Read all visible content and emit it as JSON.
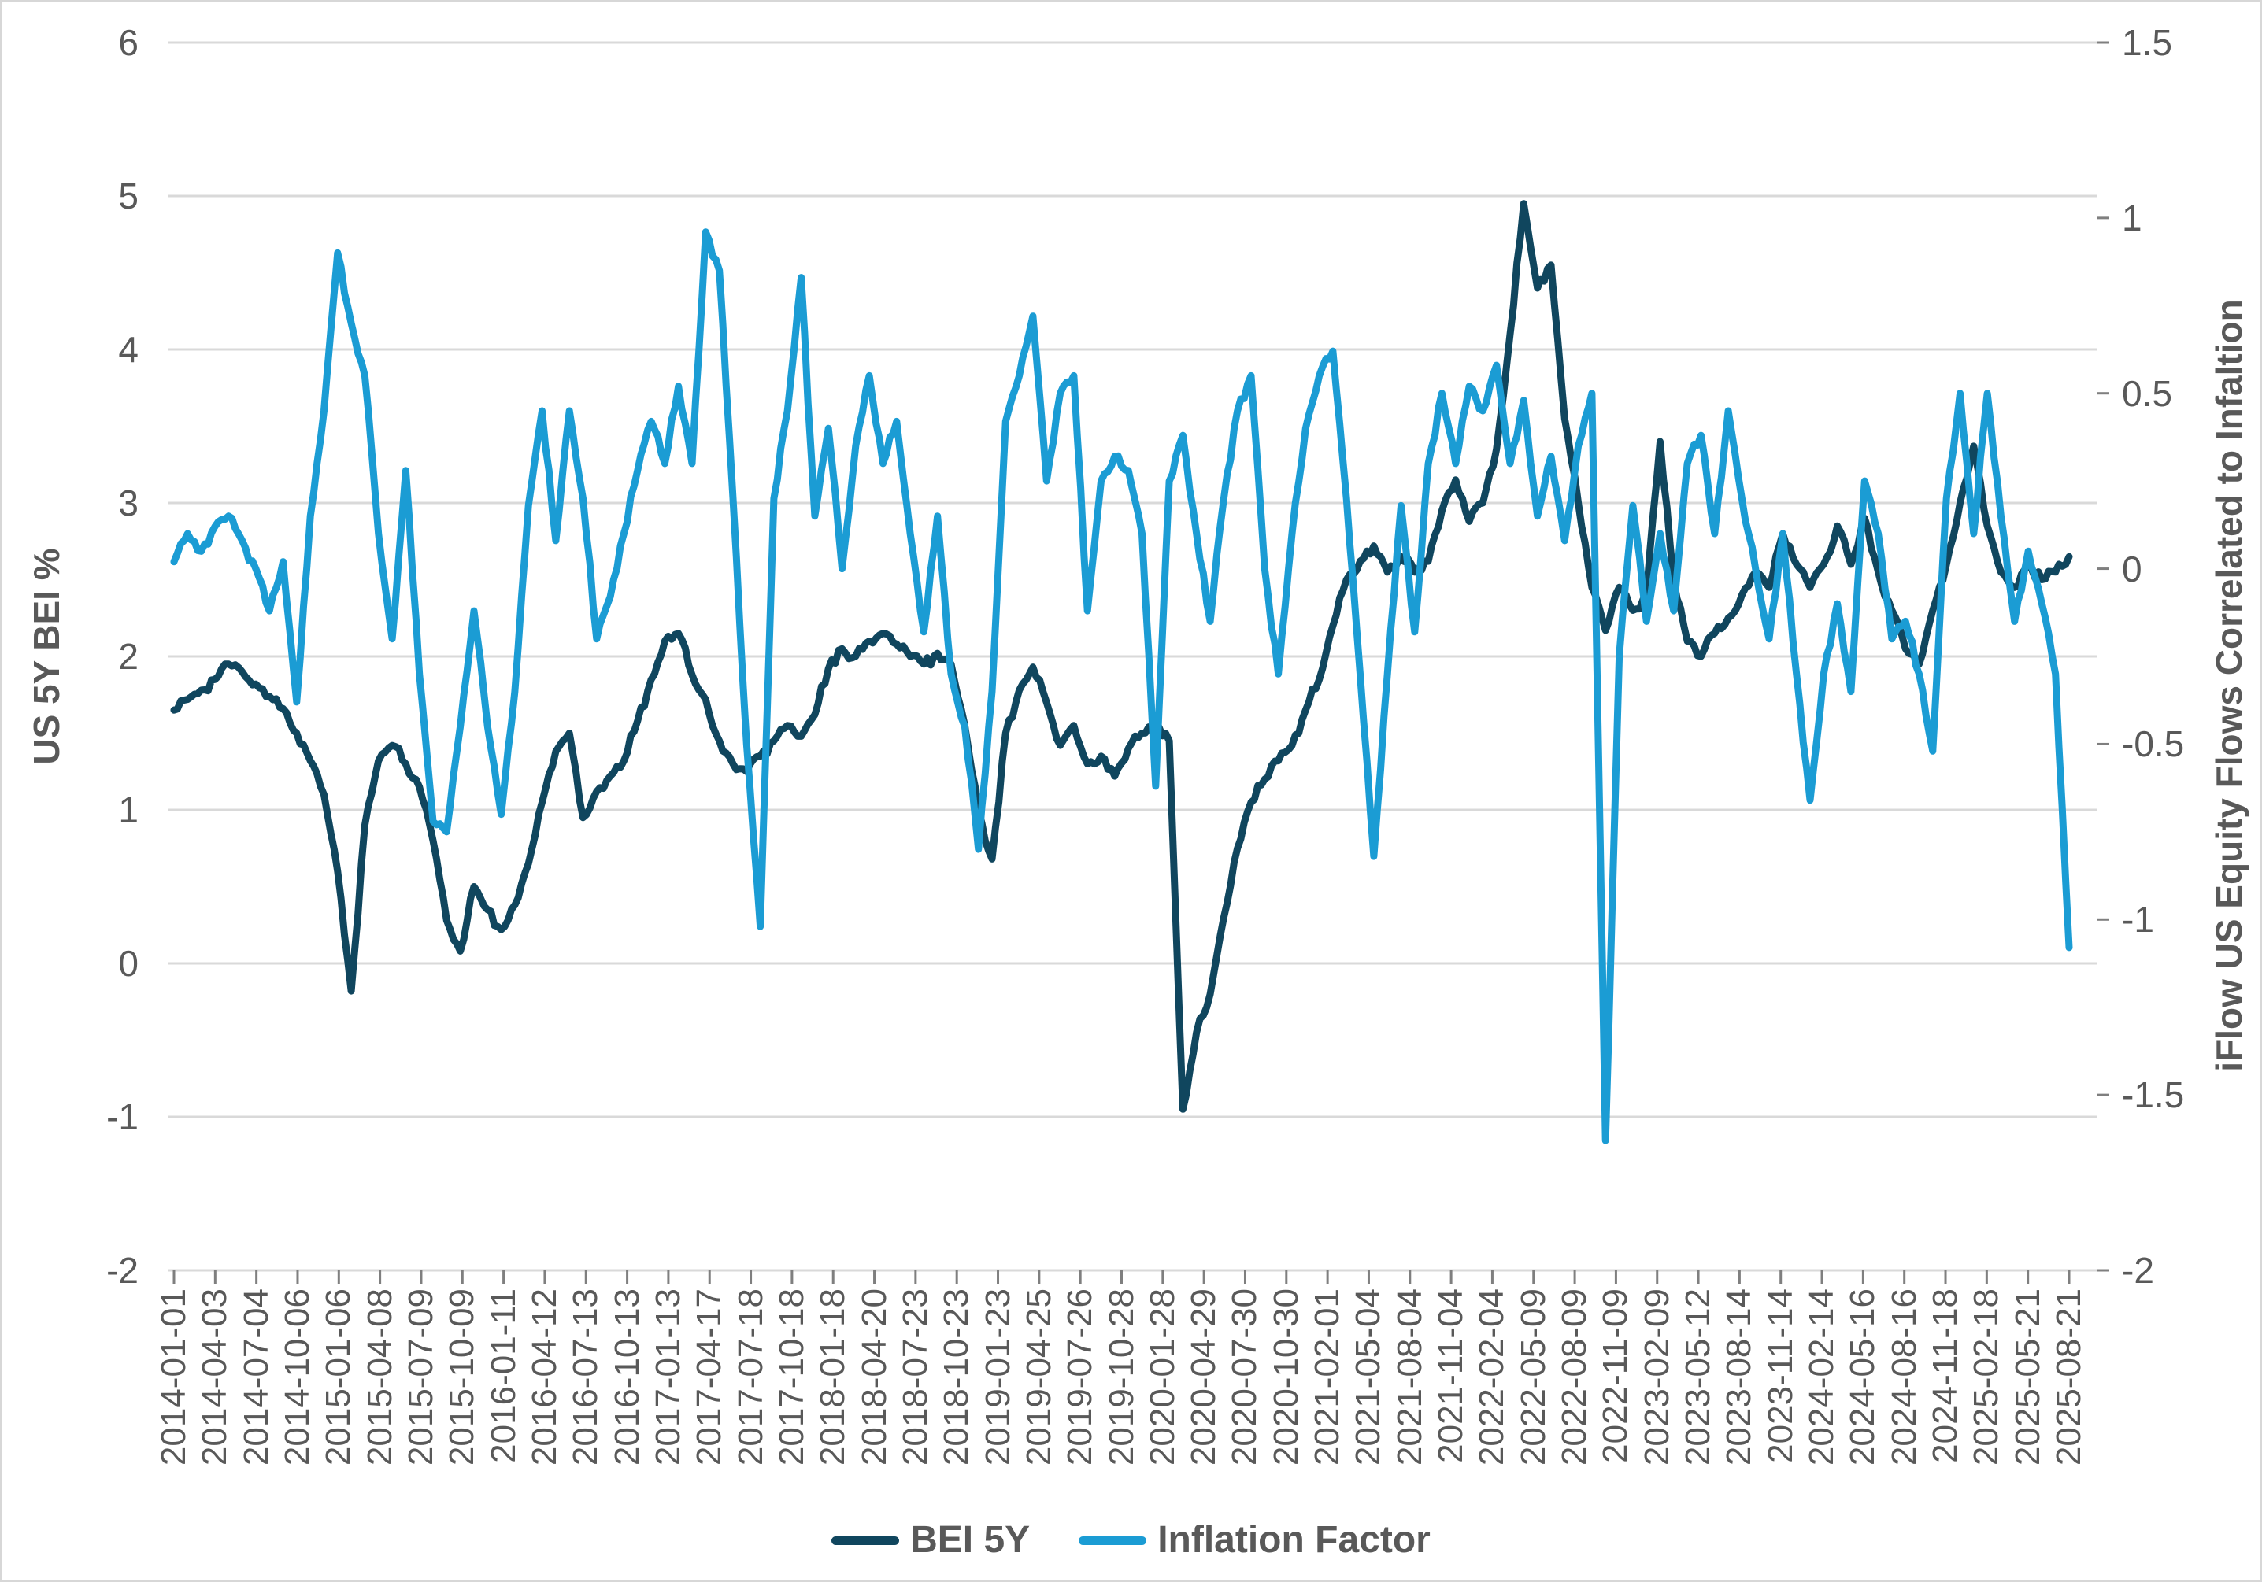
{
  "chart_data": {
    "type": "line",
    "title": "",
    "left_axis_title": "US 5Y BEI %",
    "right_axis_title": "iFlow US Equity Flows Correlated to Infaltion",
    "left_ticks": [
      "6",
      "5",
      "4",
      "3",
      "2",
      "1",
      "0",
      "-1",
      "-2"
    ],
    "right_ticks": [
      "1.5",
      "1",
      "0.5",
      "0",
      "-0.5",
      "-1",
      "-1.5",
      "-2"
    ],
    "left_ylim": [
      -2,
      6
    ],
    "right_ylim": [
      -2,
      1.5
    ],
    "grid": "horizontal",
    "legend_position": "bottom",
    "x_tick_labels": [
      "2014-01-01",
      "2014-04-03",
      "2014-07-04",
      "2014-10-06",
      "2015-01-06",
      "2015-04-08",
      "2015-07-09",
      "2015-10-09",
      "2016-01-11",
      "2016-04-12",
      "2016-07-13",
      "2016-10-13",
      "2017-01-13",
      "2017-04-17",
      "2017-07-18",
      "2017-10-18",
      "2018-01-18",
      "2018-04-20",
      "2018-07-23",
      "2018-10-23",
      "2019-01-23",
      "2019-04-25",
      "2019-07-26",
      "2019-10-28",
      "2020-01-28",
      "2020-04-29",
      "2020-07-30",
      "2020-10-30",
      "2021-02-01",
      "2021-05-04",
      "2021-08-04",
      "2021-11-04",
      "2022-02-04",
      "2022-05-09",
      "2022-08-09",
      "2022-11-09",
      "2023-02-09",
      "2023-05-12",
      "2023-08-14",
      "2023-11-14",
      "2024-02-14",
      "2024-05-16",
      "2024-08-16",
      "2024-11-18",
      "2025-02-18",
      "2025-05-21",
      "2025-08-21"
    ],
    "months": [
      "2014-01",
      "2014-02",
      "2014-03",
      "2014-04",
      "2014-05",
      "2014-06",
      "2014-07",
      "2014-08",
      "2014-09",
      "2014-10",
      "2014-11",
      "2014-12",
      "2015-01",
      "2015-02",
      "2015-03",
      "2015-04",
      "2015-05",
      "2015-06",
      "2015-07",
      "2015-08",
      "2015-09",
      "2015-10",
      "2015-11",
      "2015-12",
      "2016-01",
      "2016-02",
      "2016-03",
      "2016-04",
      "2016-05",
      "2016-06",
      "2016-07",
      "2016-08",
      "2016-09",
      "2016-10",
      "2016-11",
      "2016-12",
      "2017-01",
      "2017-02",
      "2017-03",
      "2017-04",
      "2017-05",
      "2017-06",
      "2017-07",
      "2017-08",
      "2017-09",
      "2017-10",
      "2017-11",
      "2017-12",
      "2018-01",
      "2018-02",
      "2018-03",
      "2018-04",
      "2018-05",
      "2018-06",
      "2018-07",
      "2018-08",
      "2018-09",
      "2018-10",
      "2018-11",
      "2018-12",
      "2019-01",
      "2019-02",
      "2019-03",
      "2019-04",
      "2019-05",
      "2019-06",
      "2019-07",
      "2019-08",
      "2019-09",
      "2019-10",
      "2019-11",
      "2019-12",
      "2020-01",
      "2020-02",
      "2020-03",
      "2020-04",
      "2020-05",
      "2020-06",
      "2020-07",
      "2020-08",
      "2020-09",
      "2020-10",
      "2020-11",
      "2020-12",
      "2021-01",
      "2021-02",
      "2021-03",
      "2021-04",
      "2021-05",
      "2021-06",
      "2021-07",
      "2021-08",
      "2021-09",
      "2021-10",
      "2021-11",
      "2021-12",
      "2022-01",
      "2022-02",
      "2022-03",
      "2022-04",
      "2022-05",
      "2022-06",
      "2022-07",
      "2022-08",
      "2022-09",
      "2022-10",
      "2022-11",
      "2022-12",
      "2023-01",
      "2023-02",
      "2023-03",
      "2023-04",
      "2023-05",
      "2023-06",
      "2023-07",
      "2023-08",
      "2023-09",
      "2023-10",
      "2023-11",
      "2023-12",
      "2024-01",
      "2024-02",
      "2024-03",
      "2024-04",
      "2024-05",
      "2024-06",
      "2024-07",
      "2024-08",
      "2024-09",
      "2024-10",
      "2024-11",
      "2024-12",
      "2025-01",
      "2025-02",
      "2025-03",
      "2025-04",
      "2025-05",
      "2025-06",
      "2025-07",
      "2025-08"
    ],
    "series": [
      {
        "name": "BEI 5Y",
        "axis": "left",
        "color": "#10465E",
        "values": [
          1.65,
          1.72,
          1.78,
          1.85,
          1.95,
          1.9,
          1.82,
          1.74,
          1.66,
          1.5,
          1.32,
          1.1,
          0.6,
          -0.18,
          0.9,
          1.32,
          1.42,
          1.3,
          1.15,
          0.8,
          0.28,
          0.08,
          0.5,
          0.35,
          0.22,
          0.38,
          0.65,
          1.05,
          1.38,
          1.5,
          0.95,
          1.12,
          1.22,
          1.32,
          1.58,
          1.85,
          2.1,
          2.15,
          1.88,
          1.72,
          1.45,
          1.3,
          1.25,
          1.35,
          1.45,
          1.55,
          1.48,
          1.62,
          1.92,
          2.05,
          2.0,
          2.1,
          2.15,
          2.08,
          2.0,
          1.95,
          2.02,
          1.95,
          1.55,
          1.0,
          0.68,
          1.5,
          1.78,
          1.93,
          1.7,
          1.42,
          1.55,
          1.3,
          1.35,
          1.22,
          1.4,
          1.5,
          1.55,
          1.45,
          -0.95,
          -0.45,
          -0.2,
          0.3,
          0.75,
          1.05,
          1.2,
          1.32,
          1.42,
          1.65,
          1.85,
          2.2,
          2.5,
          2.62,
          2.72,
          2.55,
          2.65,
          2.55,
          2.62,
          2.95,
          3.15,
          2.88,
          3.0,
          3.35,
          4.1,
          4.95,
          4.4,
          4.55,
          3.55,
          3.0,
          2.45,
          2.17,
          2.45,
          2.3,
          2.4,
          3.4,
          2.5,
          2.1,
          2.0,
          2.15,
          2.25,
          2.4,
          2.55,
          2.45,
          2.8,
          2.6,
          2.45,
          2.6,
          2.85,
          2.6,
          2.9,
          2.55,
          2.3,
          2.05,
          1.95,
          2.3,
          2.6,
          3.0,
          3.37,
          2.85,
          2.55,
          2.45,
          2.6,
          2.5,
          2.55,
          2.65
        ]
      },
      {
        "name": "Inflation Factor",
        "axis": "right",
        "color": "#1B9CD4",
        "values": [
          0.02,
          0.1,
          0.05,
          0.12,
          0.15,
          0.08,
          0.0,
          -0.12,
          0.02,
          -0.38,
          0.15,
          0.45,
          0.9,
          0.7,
          0.55,
          0.1,
          -0.2,
          0.28,
          -0.3,
          -0.72,
          -0.75,
          -0.45,
          -0.12,
          -0.45,
          -0.7,
          -0.35,
          0.18,
          0.45,
          0.08,
          0.45,
          0.2,
          -0.2,
          -0.08,
          0.1,
          0.28,
          0.42,
          0.3,
          0.52,
          0.3,
          0.96,
          0.85,
          0.2,
          -0.5,
          -1.02,
          0.2,
          0.45,
          0.83,
          0.15,
          0.4,
          0.0,
          0.35,
          0.55,
          0.3,
          0.42,
          0.1,
          -0.18,
          0.15,
          -0.3,
          -0.45,
          -0.8,
          -0.35,
          0.42,
          0.55,
          0.72,
          0.25,
          0.5,
          0.55,
          -0.12,
          0.25,
          0.32,
          0.28,
          0.1,
          -0.62,
          0.25,
          0.38,
          0.1,
          -0.15,
          0.2,
          0.45,
          0.55,
          0.0,
          -0.3,
          0.1,
          0.4,
          0.55,
          0.62,
          0.2,
          -0.3,
          -0.82,
          -0.3,
          0.18,
          -0.18,
          0.3,
          0.5,
          0.3,
          0.52,
          0.45,
          0.58,
          0.3,
          0.48,
          0.15,
          0.32,
          0.08,
          0.35,
          0.5,
          -1.63,
          -0.25,
          0.18,
          -0.15,
          0.1,
          -0.12,
          0.3,
          0.38,
          0.1,
          0.45,
          0.2,
          0.0,
          -0.2,
          0.1,
          -0.3,
          -0.66,
          -0.3,
          -0.1,
          -0.35,
          0.25,
          0.1,
          -0.2,
          -0.15,
          -0.3,
          -0.52,
          0.2,
          0.5,
          0.1,
          0.5,
          0.15,
          -0.15,
          0.05,
          -0.1,
          -0.3,
          -1.08
        ]
      }
    ],
    "colors": {
      "gridline": "#d9d9d9",
      "tick_mark": "#7f7f7f",
      "axis_text": "#595959",
      "bei_5y": "#10465E",
      "inflation_factor": "#1B9CD4"
    }
  }
}
